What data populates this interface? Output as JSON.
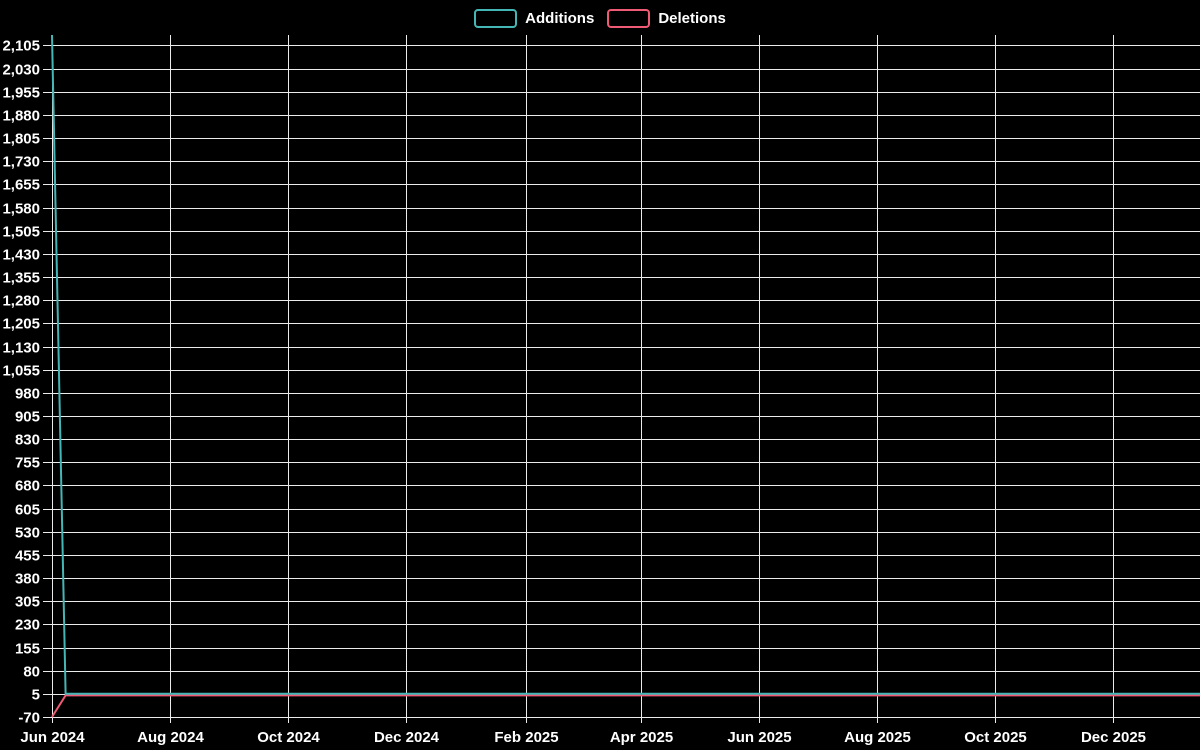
{
  "window": {
    "background": "#000000"
  },
  "legend": {
    "position": "top-center",
    "items": [
      {
        "label": "Additions",
        "color": "#45b6b6"
      },
      {
        "label": "Deletions",
        "color": "#ef5a75"
      }
    ]
  },
  "chart_data": {
    "type": "line",
    "title": "",
    "xlabel": "",
    "ylabel": "",
    "background": "#000000",
    "grid": {
      "show": true,
      "color": "#ebebeb"
    },
    "x_axis": {
      "kind": "time",
      "unit": "days_since_2024-06-01",
      "range_days": [
        0,
        593
      ],
      "ticks": [
        {
          "day": 0,
          "label": "Jun 2024"
        },
        {
          "day": 61,
          "label": "Aug 2024"
        },
        {
          "day": 122,
          "label": "Oct 2024"
        },
        {
          "day": 183,
          "label": "Dec 2024"
        },
        {
          "day": 245,
          "label": "Feb 2025"
        },
        {
          "day": 304,
          "label": "Apr 2025"
        },
        {
          "day": 365,
          "label": "Jun 2025"
        },
        {
          "day": 426,
          "label": "Aug 2025"
        },
        {
          "day": 487,
          "label": "Oct 2025"
        },
        {
          "day": 548,
          "label": "Dec 2025"
        }
      ]
    },
    "y_axis": {
      "range": [
        -70,
        2139
      ],
      "tick_interval": 75,
      "ticks": [
        {
          "value": 2105,
          "label": "2,105"
        },
        {
          "value": 2030,
          "label": "2,030"
        },
        {
          "value": 1955,
          "label": "1,955"
        },
        {
          "value": 1880,
          "label": "1,880"
        },
        {
          "value": 1805,
          "label": "1,805"
        },
        {
          "value": 1730,
          "label": "1,730"
        },
        {
          "value": 1655,
          "label": "1,655"
        },
        {
          "value": 1580,
          "label": "1,580"
        },
        {
          "value": 1505,
          "label": "1,505"
        },
        {
          "value": 1430,
          "label": "1,430"
        },
        {
          "value": 1355,
          "label": "1,355"
        },
        {
          "value": 1280,
          "label": "1,280"
        },
        {
          "value": 1205,
          "label": "1,205"
        },
        {
          "value": 1130,
          "label": "1,130"
        },
        {
          "value": 1055,
          "label": "1,055"
        },
        {
          "value": 980,
          "label": "980"
        },
        {
          "value": 905,
          "label": "905"
        },
        {
          "value": 830,
          "label": "830"
        },
        {
          "value": 755,
          "label": "755"
        },
        {
          "value": 680,
          "label": "680"
        },
        {
          "value": 605,
          "label": "605"
        },
        {
          "value": 530,
          "label": "530"
        },
        {
          "value": 455,
          "label": "455"
        },
        {
          "value": 380,
          "label": "380"
        },
        {
          "value": 305,
          "label": "305"
        },
        {
          "value": 230,
          "label": "230"
        },
        {
          "value": 155,
          "label": "155"
        },
        {
          "value": 80,
          "label": "80"
        },
        {
          "value": 5,
          "label": "5"
        },
        {
          "value": -70,
          "label": "-70"
        }
      ]
    },
    "series": [
      {
        "name": "Additions",
        "color": "#45b6b6",
        "points": [
          [
            0,
            2139
          ],
          [
            7,
            5
          ],
          [
            593,
            5
          ]
        ]
      },
      {
        "name": "Deletions",
        "color": "#ef5a75",
        "points": [
          [
            0,
            -70
          ],
          [
            7,
            0
          ],
          [
            593,
            0
          ]
        ]
      }
    ]
  }
}
